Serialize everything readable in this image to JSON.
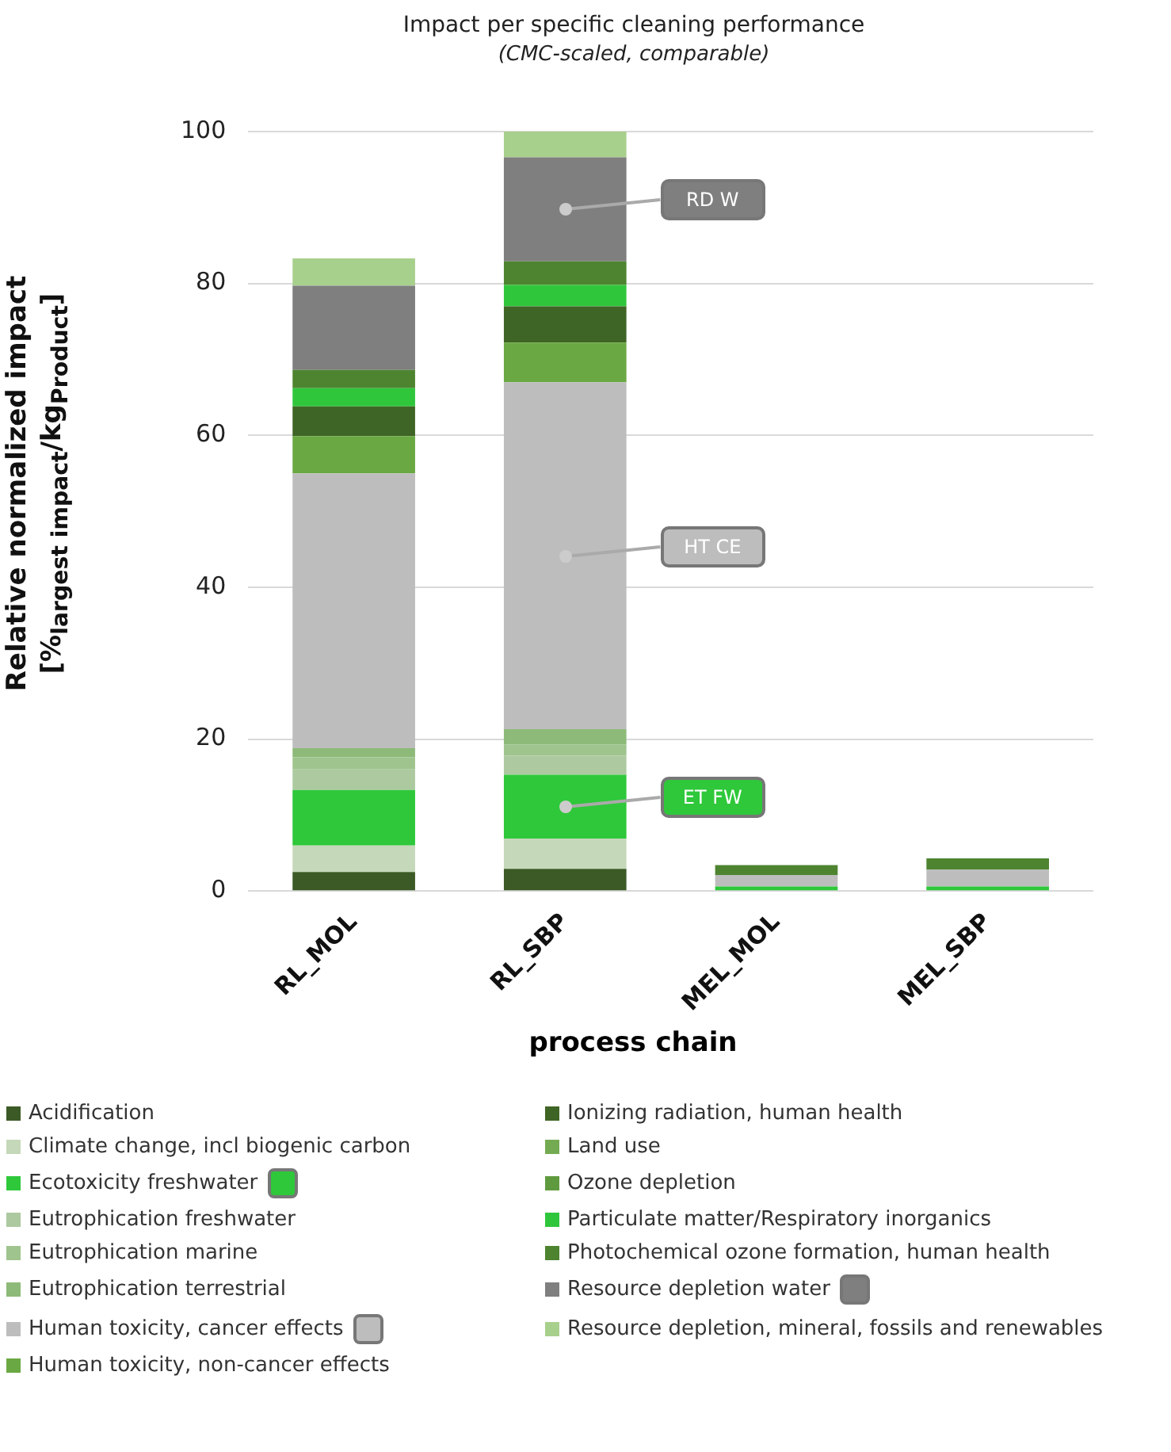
{
  "chart_data": {
    "type": "bar",
    "stacked": true,
    "title": "Impact per specific cleaning performance",
    "subtitle": "(CMC-scaled, comparable)",
    "xlabel": "process chain",
    "ylabel": "Relative normalized impact [%$_{largest impact}$/kg$_{Product}$]",
    "categories": [
      "RL_MOL",
      "RL_SBP",
      "MEL_MOL",
      "MEL_SBP"
    ],
    "ylim": [
      0,
      100
    ],
    "yticks": [
      0,
      20,
      40,
      60,
      80,
      100
    ],
    "grid": "y",
    "legend": "bottom",
    "annotations": [
      "RD W",
      "HT CE",
      "ET FW"
    ],
    "series": [
      {
        "name": "Acidification",
        "color": "#3b5a25",
        "values": [
          2.5,
          2.9,
          0,
          0
        ]
      },
      {
        "name": "Climate change, incl biogenic carbon",
        "color": "#c5d8b9",
        "values": [
          3.5,
          4.0,
          0,
          0
        ]
      },
      {
        "name": "Ecotoxicity freshwater",
        "color": "#2ec83a",
        "values": [
          7.3,
          8.4,
          0.6,
          0.6
        ]
      },
      {
        "name": "Eutrophication freshwater",
        "color": "#adc9a0",
        "values": [
          2.7,
          2.5,
          0,
          0
        ]
      },
      {
        "name": "Eutrophication marine",
        "color": "#9fc48d",
        "values": [
          1.6,
          1.5,
          0,
          0
        ]
      },
      {
        "name": "Eutrophication terrestrial",
        "color": "#8dba78",
        "values": [
          1.2,
          2.0,
          0,
          0
        ]
      },
      {
        "name": "Human toxicity, cancer effects",
        "color": "#bdbdbd",
        "values": [
          36.2,
          45.7,
          1.5,
          2.2
        ]
      },
      {
        "name": "Human toxicity, non-cancer effects",
        "color": "#6aa843",
        "values": [
          4.9,
          5.2,
          0,
          0
        ]
      },
      {
        "name": "Ionizing radiation, human health",
        "color": "#3f6526",
        "values": [
          3.9,
          4.8,
          0,
          0
        ]
      },
      {
        "name": "Land use",
        "color": "#74ab52",
        "values": [
          0,
          0,
          0,
          0
        ]
      },
      {
        "name": "Ozone depletion",
        "color": "#5f9a3f",
        "values": [
          0,
          0,
          0,
          0
        ]
      },
      {
        "name": "Particulate matter/Respiratory inorganics",
        "color": "#30c63c",
        "values": [
          2.4,
          2.8,
          0,
          0
        ]
      },
      {
        "name": "Photochemical ozone formation, human health",
        "color": "#4e8430",
        "values": [
          2.4,
          3.1,
          1.3,
          1.5
        ]
      },
      {
        "name": "Resource depletion water",
        "color": "#7f7f7f",
        "values": [
          11.1,
          13.7,
          0,
          0
        ]
      },
      {
        "name": "Resource depletion, mineral, fossils and renewables",
        "color": "#a8d08d",
        "values": [
          3.6,
          3.4,
          0,
          0
        ]
      }
    ]
  }
}
